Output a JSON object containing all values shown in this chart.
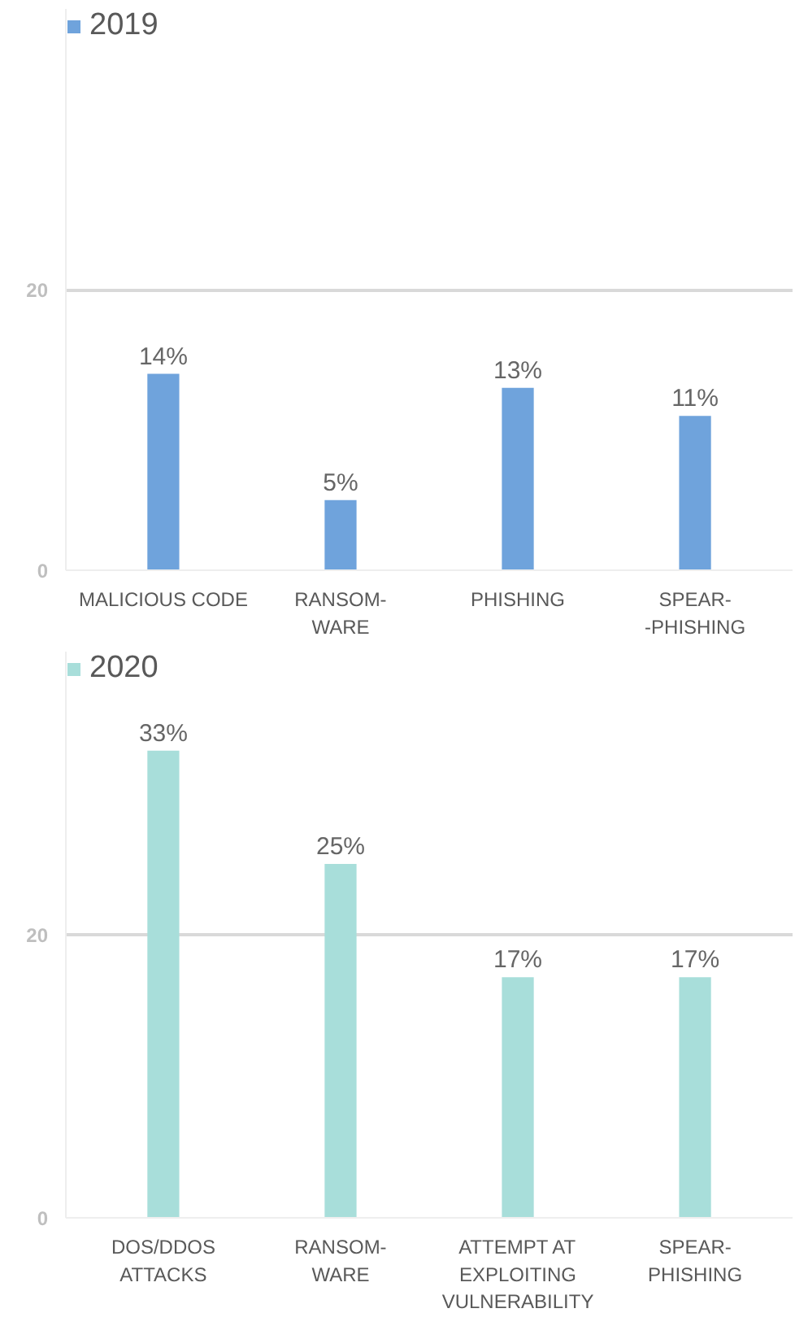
{
  "chart_data": [
    {
      "type": "bar",
      "categories": [
        "MALICIOUS CODE",
        "RANSOM-\nWARE",
        "PHISHING",
        "SPEAR-\n-PHISHING"
      ],
      "series": [
        {
          "name": "2019",
          "color": "#6fa3dc",
          "values": [
            14,
            5,
            13,
            11
          ],
          "value_labels": [
            "14%",
            "5%",
            "13%",
            "11%"
          ]
        }
      ],
      "ylim": [
        0,
        40
      ],
      "yticks": [
        0,
        20
      ],
      "grid": "y",
      "legend": "top left"
    },
    {
      "type": "bar",
      "categories": [
        "DOS/DDOS\nATTACKS",
        "RANSOM-\nWARE",
        "ATTEMPT AT\nEXPLOITING\nVULNERABILITY",
        "SPEAR-\nPHISHING"
      ],
      "series": [
        {
          "name": "2020",
          "color": "#a8deda",
          "values": [
            33,
            25,
            17,
            17
          ],
          "value_labels": [
            "33%",
            "25%",
            "17%",
            "17%"
          ]
        }
      ],
      "ylim": [
        0,
        40
      ],
      "yticks": [
        0,
        20
      ],
      "grid": "y",
      "legend": "top left"
    }
  ]
}
